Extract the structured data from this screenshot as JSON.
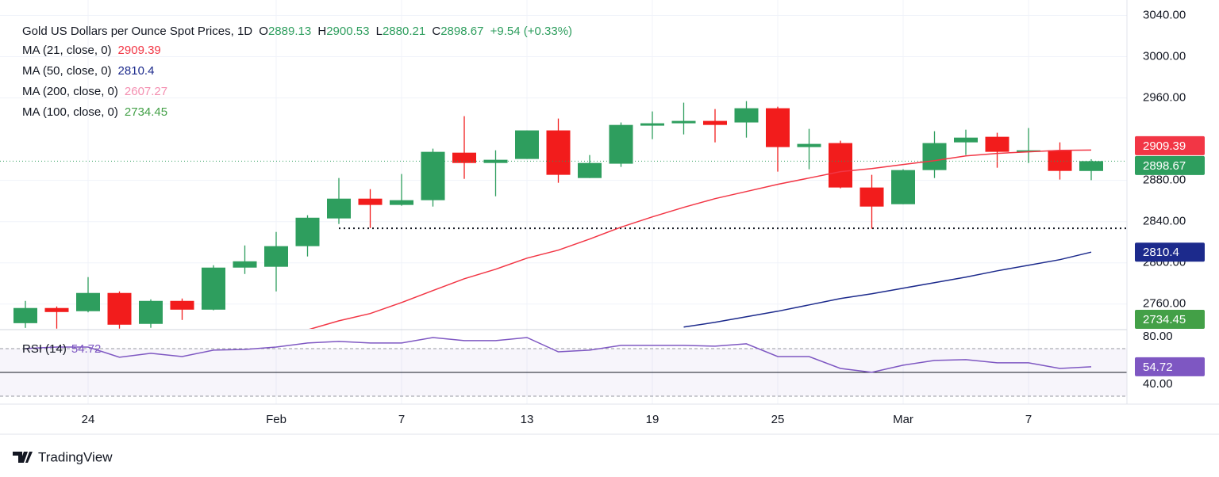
{
  "chart_data": {
    "type": "candlestick",
    "title": "Gold US Dollars per Ounce Spot Prices, 1D",
    "ohlc_labels": [
      "O",
      "H",
      "L",
      "C"
    ],
    "change": "+9.54",
    "change_pct": "(+0.33%)",
    "categories": [
      null,
      null,
      "24",
      null,
      null,
      null,
      null,
      null,
      "Feb",
      null,
      null,
      null,
      "7",
      null,
      null,
      null,
      "13",
      null,
      null,
      null,
      "19",
      null,
      null,
      null,
      "25",
      null,
      null,
      null,
      "Mar",
      null,
      null,
      null,
      "7",
      null,
      null
    ],
    "candles": {
      "open": [
        2741.5,
        2756.2,
        2753.1,
        2770.8,
        2740.8,
        2763.1,
        2754.6,
        2795.4,
        2796.2,
        2816.2,
        2843.1,
        2862.3,
        2856.2,
        2860.8,
        2906.9,
        2896.9,
        2900.8,
        2928.5,
        2882.3,
        2896.2,
        2933.1,
        2935.4,
        2937.7,
        2936.2,
        2950,
        2912.3,
        2916.2,
        2873.1,
        2856.9,
        2890,
        2916.9,
        2922.3,
        2907.7,
        2909.2,
        2889.13
      ],
      "high": [
        2763.1,
        2757.7,
        2786.2,
        2772.3,
        2764.6,
        2765.4,
        2797.7,
        2816.9,
        2830,
        2846.2,
        2882.3,
        2871.5,
        2886.2,
        2910.8,
        2942.3,
        2909.2,
        2928.5,
        2940,
        2904.6,
        2936.2,
        2946.9,
        2955.4,
        2949.2,
        2956.9,
        2951.5,
        2930,
        2918.5,
        2885.4,
        2890.8,
        2927.7,
        2929.2,
        2926.2,
        2930.8,
        2916.9,
        2900.53
      ],
      "low": [
        2736.9,
        2736.2,
        2752,
        2736.2,
        2737,
        2744.6,
        2754,
        2789.2,
        2772.3,
        2806.2,
        2837.7,
        2833.8,
        2855.4,
        2854.6,
        2881.5,
        2864.6,
        2900.8,
        2877.7,
        2882.3,
        2893.1,
        2920,
        2924.6,
        2916.9,
        2921.5,
        2888.5,
        2890.8,
        2872.3,
        2833.1,
        2856.9,
        2882.3,
        2904.6,
        2892.3,
        2896.9,
        2880.8,
        2880.21
      ],
      "close": [
        2756.2,
        2752.3,
        2770.8,
        2740,
        2763.1,
        2754.6,
        2795.4,
        2801.5,
        2816.2,
        2843.8,
        2862.3,
        2856.2,
        2860.8,
        2907.7,
        2896.9,
        2900,
        2928.5,
        2885.4,
        2896.9,
        2933.8,
        2935.4,
        2937.7,
        2933.8,
        2950,
        2912.3,
        2915.4,
        2873.1,
        2854.6,
        2890,
        2916.2,
        2921.5,
        2907.7,
        2909.2,
        2889.2,
        2898.67
      ]
    },
    "up_color": "#2e9e5e",
    "down_color": "#f21c1c",
    "moving_averages": [
      {
        "name": "MA (21, close, 0)",
        "color": "#f23645",
        "values": [
          null,
          null,
          null,
          null,
          null,
          null,
          null,
          null,
          null,
          2735,
          2743.8,
          2750.8,
          2761.5,
          2773.1,
          2784.6,
          2793.8,
          2804.6,
          2812.3,
          2823.1,
          2834.6,
          2844.6,
          2853.8,
          2862.3,
          2869.2,
          2876.2,
          2882.3,
          2888.5,
          2891.5,
          2895.4,
          2899.2,
          2903.8,
          2906.2,
          2907.7,
          2909.2,
          2909.39
        ]
      },
      {
        "name": "MA (50, close, 0)",
        "color": "#1c2a8c",
        "values": [
          null,
          null,
          null,
          null,
          null,
          null,
          null,
          null,
          null,
          null,
          null,
          null,
          null,
          null,
          null,
          null,
          null,
          null,
          null,
          null,
          null,
          2737.7,
          2742.3,
          2747.7,
          2753.1,
          2759.2,
          2765.4,
          2770,
          2775.4,
          2780.8,
          2786.2,
          2792.3,
          2797.7,
          2803.1,
          2810.4
        ]
      },
      {
        "name": "MA (200, close, 0)",
        "color": "#f48fb1",
        "last": 2607.27
      },
      {
        "name": "MA (100, close, 0)",
        "color": "#43a047",
        "last": 2734.45
      }
    ],
    "support_level": 2833.5,
    "ylim": [
      2736,
      3055
    ],
    "yticks": [
      {
        "value": 2760,
        "label": "2760.00"
      },
      {
        "value": 2800,
        "label": "2800.00"
      },
      {
        "value": 2840,
        "label": "2840.00"
      },
      {
        "value": 2880,
        "label": "2880.00"
      },
      {
        "value": 2960,
        "label": "2960.00"
      },
      {
        "value": 3000,
        "label": "3000.00"
      },
      {
        "value": 3040,
        "label": "3040.00"
      }
    ],
    "grid": true,
    "rsi": {
      "name": "RSI (14)",
      "color": "#7e57c2",
      "values": [
        70,
        71.3,
        71.3,
        62.7,
        66,
        63.3,
        68.7,
        69.3,
        71.3,
        74.7,
        76,
        74.7,
        74.7,
        79.3,
        76.7,
        76.7,
        79.3,
        67.3,
        68.7,
        72.7,
        72.7,
        72.7,
        72,
        74,
        63.3,
        63.3,
        53.3,
        50,
        56,
        60,
        60.7,
        58,
        58,
        53.3,
        54.72
      ],
      "ylim": [
        23.3,
        85.3
      ],
      "yticks": [
        {
          "value": 80,
          "label": "80.00"
        },
        {
          "value": 40,
          "label": "40.00"
        }
      ],
      "bands": [
        70,
        30
      ],
      "midline": 50
    },
    "brand": "TradingView"
  }
}
